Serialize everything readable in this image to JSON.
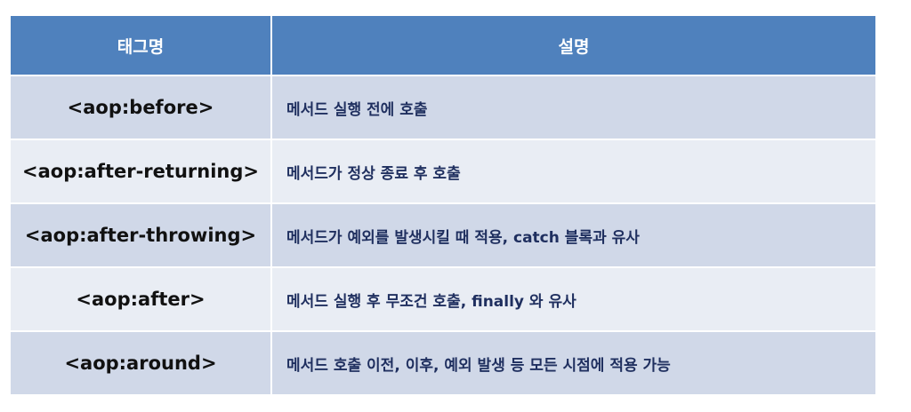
{
  "table": {
    "headers": [
      "태그명",
      "설명"
    ],
    "rows": [
      {
        "tag": "<aop:before>",
        "desc": "메서드 실행 전에 호출"
      },
      {
        "tag": "<aop:after-returning>",
        "desc": "메서드가 정상 종료 후 호출"
      },
      {
        "tag": "<aop:after-throwing>",
        "desc": "메서드가 예외를 발생시킬 때 적용, catch 블록과 유사"
      },
      {
        "tag": "<aop:after>",
        "desc": "메서드 실행 후 무조건 호출, finally 와 유사"
      },
      {
        "tag": "<aop:around>",
        "desc": "메서드 호출 이전, 이후, 예외 발생 등 모든 시점에 적용 가능"
      }
    ]
  },
  "colors": {
    "header_bg": "#4f81bd",
    "row_odd_bg": "#d0d8e8",
    "row_even_bg": "#e9edf4",
    "desc_text": "#1f2f5f"
  }
}
